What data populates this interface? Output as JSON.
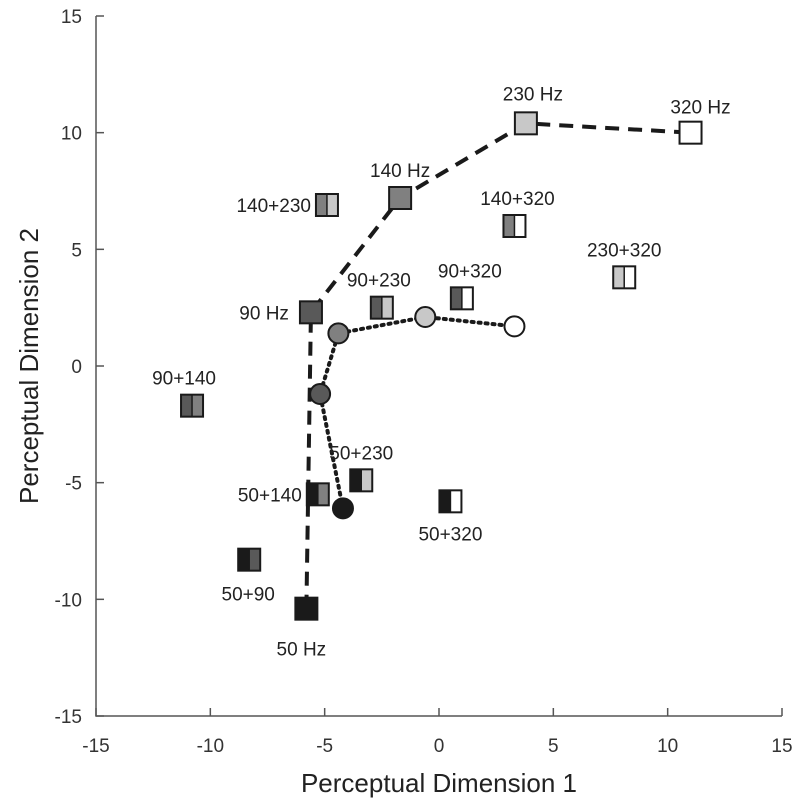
{
  "chart_data": {
    "type": "scatter",
    "xlabel": "Perceptual Dimension 1",
    "ylabel": "Perceptual Dimension 2",
    "xlim": [
      -15,
      15
    ],
    "ylim": [
      -15,
      15
    ],
    "xticks": [
      -15,
      -10,
      -5,
      0,
      5,
      10,
      15
    ],
    "yticks": [
      -15,
      -10,
      -5,
      0,
      5,
      10,
      15
    ],
    "xtick_labels": [
      "-15",
      "-10",
      "-5",
      "0",
      "5",
      "10",
      "15"
    ],
    "ytick_labels": [
      "-15",
      "-10",
      "-5",
      "0",
      "5",
      "10",
      "15"
    ],
    "grid": false,
    "colors": {
      "50": "#1a1a1a",
      "90": "#595959",
      "140": "#808080",
      "230": "#c8c8c8",
      "320": "#ffffff"
    },
    "single_tones": {
      "marker": "square",
      "line_style": "dashed",
      "points": [
        {
          "label": "50 Hz",
          "x": -5.8,
          "y": -10.4,
          "color_key": "50"
        },
        {
          "label": "90 Hz",
          "x": -5.6,
          "y": 2.3,
          "color_key": "90"
        },
        {
          "label": "140 Hz",
          "x": -1.7,
          "y": 7.2,
          "color_key": "140"
        },
        {
          "label": "230 Hz",
          "x": 3.8,
          "y": 10.4,
          "color_key": "230"
        },
        {
          "label": "320 Hz",
          "x": 11.0,
          "y": 10.0,
          "color_key": "320"
        }
      ]
    },
    "circle_series": {
      "marker": "circle",
      "line_style": "dotted",
      "points": [
        {
          "x": -4.2,
          "y": -6.1,
          "color_key": "50"
        },
        {
          "x": -5.2,
          "y": -1.2,
          "color_key": "90"
        },
        {
          "x": -4.4,
          "y": 1.4,
          "color_key": "140"
        },
        {
          "x": -0.6,
          "y": 2.1,
          "color_key": "230"
        },
        {
          "x": 3.3,
          "y": 1.7,
          "color_key": "320"
        }
      ]
    },
    "tone_pairs": {
      "marker": "split-square",
      "points": [
        {
          "label": "50+90",
          "x": -8.3,
          "y": -8.3,
          "left": "50",
          "right": "90"
        },
        {
          "label": "50+140",
          "x": -5.3,
          "y": -5.5,
          "left": "50",
          "right": "140"
        },
        {
          "label": "50+230",
          "x": -3.4,
          "y": -4.9,
          "left": "50",
          "right": "230"
        },
        {
          "label": "50+320",
          "x": 0.5,
          "y": -5.8,
          "left": "50",
          "right": "320"
        },
        {
          "label": "90+140",
          "x": -10.8,
          "y": -1.7,
          "left": "90",
          "right": "140"
        },
        {
          "label": "90+230",
          "x": -2.5,
          "y": 2.5,
          "left": "90",
          "right": "230"
        },
        {
          "label": "90+320",
          "x": 1.0,
          "y": 2.9,
          "left": "90",
          "right": "320"
        },
        {
          "label": "140+230",
          "x": -4.9,
          "y": 6.9,
          "left": "140",
          "right": "230"
        },
        {
          "label": "140+320",
          "x": 3.3,
          "y": 6.0,
          "left": "140",
          "right": "320"
        },
        {
          "label": "230+320",
          "x": 8.1,
          "y": 3.8,
          "left": "230",
          "right": "320"
        }
      ]
    }
  }
}
